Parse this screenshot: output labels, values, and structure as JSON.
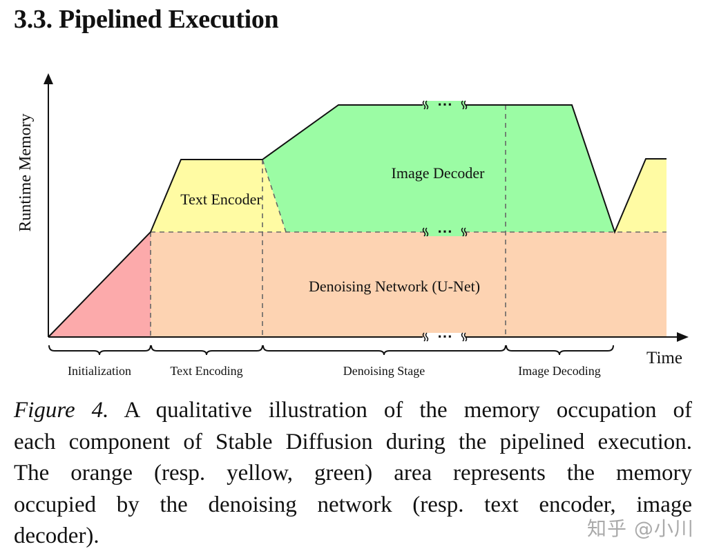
{
  "section_title": "3.3. Pipelined Execution",
  "figure": {
    "y_axis_label": "Runtime Memory",
    "x_axis_label": "Time",
    "regions": {
      "text_encoder": {
        "label": "Text Encoder",
        "color": "#FFFBA3"
      },
      "image_decoder": {
        "label": "Image Decoder",
        "color": "#9BFCA4"
      },
      "denoising_network": {
        "label": "Denoising Network (U-Net)",
        "color": "#FDD3B2"
      },
      "initialization": {
        "color": "#FCAAAB"
      }
    },
    "stages": [
      "Initialization",
      "Text Encoding",
      "Denoising Stage",
      "Image Decoding"
    ],
    "break_marker": "⋯"
  },
  "caption": {
    "figure_number": "Figure 4.",
    "lines": [
      " A qualitative illustration of the memory occupation of",
      "each component of Stable Diffusion during the pipelined execution.",
      "The orange (resp.  yellow, green) area represents the memory",
      "occupied by the denoising network (resp.  text encoder, image",
      "decoder)."
    ]
  },
  "watermark": "知乎 @小川"
}
